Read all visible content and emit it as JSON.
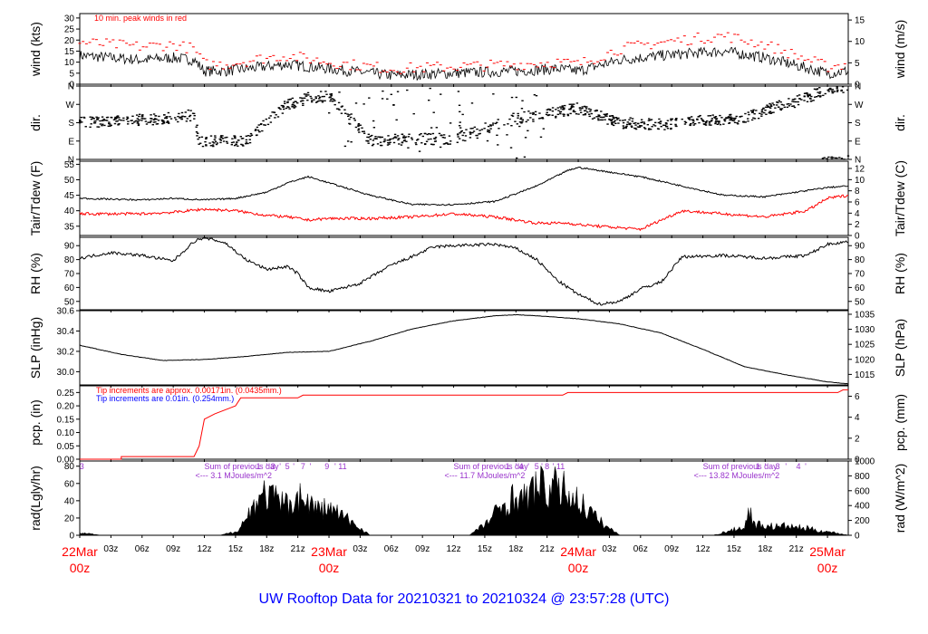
{
  "footer_title": "UW Rooftop Data for 20210321  to  20210324 @ 23:57:28  (UTC)",
  "colors": {
    "trace": "#000000",
    "peak": "#ff0000",
    "dew": "#ff0000",
    "note_red": "#ff0000",
    "note_blue": "#0000ff",
    "solar": "#9933cc",
    "date": "#ff0000",
    "title": "#0000ff"
  },
  "x_axis": {
    "date_labels": [
      {
        "day": "22Mar",
        "hour": "00z"
      },
      {
        "day": "23Mar",
        "hour": "00z"
      },
      {
        "day": "24Mar",
        "hour": "00z"
      },
      {
        "day": "25Mar",
        "hour": "00z"
      }
    ],
    "hour_labels": [
      "03z",
      "06z",
      "09z",
      "12z",
      "15z",
      "18z",
      "21z"
    ]
  },
  "chart_data": [
    {
      "type": "line",
      "name": "wind",
      "ylabel_left": "wind (kts)",
      "ylabel_right": "wind (m/s)",
      "yticks_left": [
        "0",
        "5",
        "10",
        "15",
        "20",
        "25",
        "30"
      ],
      "ylim_left": [
        0,
        32
      ],
      "yticks_right": [
        "0",
        "5",
        "10",
        "15"
      ],
      "ylim_right": [
        0,
        16.5
      ],
      "note": "10 min. peak winds in red",
      "x_hours": [
        0,
        3,
        6,
        9,
        11,
        12,
        14,
        18,
        20,
        24,
        30,
        36,
        42,
        46,
        48,
        52,
        56,
        62,
        66,
        72,
        74
      ],
      "speed_kts": [
        13,
        12,
        11,
        12,
        11,
        6,
        6,
        8,
        9,
        7,
        4,
        5,
        6,
        7,
        6,
        11,
        13,
        15,
        12,
        5,
        6
      ],
      "peak_kts": [
        19,
        18,
        17,
        18,
        16,
        9,
        9,
        12,
        13,
        10,
        7,
        8,
        9,
        10,
        9,
        16,
        19,
        22,
        18,
        8,
        9
      ]
    },
    {
      "type": "scatter",
      "name": "direction",
      "ylabel_left": "dir.",
      "ylabel_right": "dir.",
      "yticks": [
        "N",
        "E",
        "S",
        "W",
        "N"
      ],
      "ylim_deg": [
        0,
        360
      ],
      "x_hours": [
        0,
        4,
        8,
        10,
        11,
        11.5,
        12,
        16,
        20,
        22,
        24,
        28,
        32,
        36,
        42,
        48,
        52,
        56,
        60,
        64,
        66,
        70,
        72
      ],
      "dir_deg": [
        180,
        190,
        200,
        210,
        220,
        90,
        90,
        90,
        270,
        300,
        310,
        90,
        100,
        100,
        200,
        250,
        180,
        170,
        190,
        200,
        240,
        300,
        350
      ]
    },
    {
      "type": "line",
      "name": "temperature",
      "ylabel_left": "Tair/Tdew (F)",
      "ylabel_right": "Tair/Tdew (C)",
      "yticks_left": [
        "35",
        "40",
        "45",
        "50",
        "55"
      ],
      "ylim_left": [
        32,
        56
      ],
      "yticks_right": [
        "0",
        "2",
        "4",
        "6",
        "8",
        "10",
        "12"
      ],
      "ylim_right": [
        0,
        13.3
      ],
      "x_hours": [
        0,
        6,
        9,
        12,
        15,
        18,
        20,
        22,
        24,
        28,
        32,
        36,
        40,
        44,
        47,
        48,
        50,
        54,
        58,
        62,
        66,
        70,
        72,
        74
      ],
      "tair_f": [
        44,
        43.5,
        44,
        43.5,
        44,
        46,
        49,
        51,
        49,
        45,
        42,
        42,
        43,
        48,
        53,
        54,
        53,
        51,
        48,
        45,
        44.5,
        46.5,
        47.5,
        48
      ],
      "tdew_f": [
        39,
        39,
        39.5,
        40.5,
        40,
        38.5,
        38,
        37,
        37.5,
        37.5,
        38,
        39,
        38,
        36,
        36,
        35.5,
        35,
        34,
        40,
        39,
        38,
        40,
        44,
        45
      ]
    },
    {
      "type": "line",
      "name": "relative_humidity",
      "ylabel_left": "RH (%)",
      "ylabel_right": "RH (%)",
      "yticks": [
        "50",
        "60",
        "70",
        "80",
        "90"
      ],
      "ylim": [
        44,
        96
      ],
      "x_hours": [
        0,
        3,
        6,
        9,
        11,
        12,
        14,
        16,
        18,
        20,
        21,
        22,
        24,
        27,
        30,
        32,
        34,
        36,
        40,
        42,
        44,
        46,
        48,
        50,
        52,
        54,
        56,
        58,
        62,
        66,
        70,
        72,
        74
      ],
      "rh_pct": [
        81,
        85,
        83,
        79,
        93,
        96,
        92,
        80,
        73,
        75,
        70,
        60,
        57,
        63,
        76,
        82,
        89,
        90,
        91,
        88,
        80,
        65,
        55,
        48,
        50,
        59,
        64,
        82,
        83,
        81,
        83,
        91,
        93
      ]
    },
    {
      "type": "line",
      "name": "sea_level_pressure",
      "ylabel_left": "SLP (inHg)",
      "ylabel_right": "SLP (hPa)",
      "yticks_left": [
        "30.0",
        "30.2",
        "30.4",
        "30.6"
      ],
      "ylim_left": [
        29.87,
        30.6
      ],
      "yticks_right": [
        "1015",
        "1020",
        "1025",
        "1030",
        "1035"
      ],
      "ylim_right": [
        1011.5,
        1036.2
      ],
      "x_hours": [
        0,
        4,
        8,
        12,
        16,
        20,
        24,
        28,
        32,
        36,
        40,
        42,
        44,
        48,
        52,
        56,
        60,
        64,
        68,
        72,
        74
      ],
      "slp_inhg": [
        30.26,
        30.17,
        30.11,
        30.12,
        30.15,
        30.19,
        30.2,
        30.3,
        30.42,
        30.5,
        30.55,
        30.56,
        30.55,
        30.52,
        30.47,
        30.38,
        30.22,
        30.05,
        29.97,
        29.9,
        29.88
      ]
    },
    {
      "type": "line",
      "name": "precipitation",
      "ylabel_left": "pcp. (in)",
      "ylabel_right": "pcp. (mm)",
      "yticks_left": [
        "0.00",
        "0.05",
        "0.10",
        "0.15",
        "0.20",
        "0.25"
      ],
      "ylim_left": [
        0,
        0.275
      ],
      "yticks_right": [
        "0",
        "2",
        "4",
        "6"
      ],
      "ylim_right": [
        0,
        6.99
      ],
      "note_red": "Tip increments are approx. 0.00171in. (0.0435mm.)",
      "note_blue": "Tip increments are 0.01in. (0.254mm.)",
      "x_hours": [
        0,
        4,
        4,
        11,
        11.5,
        12,
        13,
        15,
        15.5,
        21,
        21.5,
        46.5,
        47,
        73,
        73.5,
        74
      ],
      "pcp_in": [
        0,
        0,
        0.01,
        0.01,
        0.05,
        0.15,
        0.17,
        0.2,
        0.23,
        0.23,
        0.24,
        0.24,
        0.25,
        0.25,
        0.26,
        0.26
      ]
    },
    {
      "type": "area",
      "name": "solar_radiation",
      "ylabel_left": "rad(Lgly/hr)",
      "ylabel_right": "rad (W/m^2)",
      "yticks_left": [
        "0",
        "20",
        "40",
        "60",
        "80"
      ],
      "ylim_left": [
        0,
        86
      ],
      "yticks_right": [
        "0",
        "200",
        "400",
        "600",
        "800",
        "1000"
      ],
      "ylim_right": [
        0,
        1000
      ],
      "daily_sums": [
        {
          "label": "Sum of previous day",
          "value": "<--- 3.1 MJoules/m^2"
        },
        {
          "label": "Sum of previous day",
          "value": "<--- 11.7 MJoules/m^2"
        },
        {
          "label": "Sum of previous day",
          "value": "<--- 13.82 MJoules/m^2"
        }
      ],
      "tip_markers": [
        {
          "x": 0.2,
          "text": "3"
        },
        {
          "x": 17.2,
          "text": "1"
        },
        {
          "x": 18.0,
          "text": "'"
        },
        {
          "x": 18.6,
          "text": "3"
        },
        {
          "x": 19.3,
          "text": "'"
        },
        {
          "x": 20.0,
          "text": "5"
        },
        {
          "x": 20.6,
          "text": "'"
        },
        {
          "x": 21.5,
          "text": "7"
        },
        {
          "x": 22.2,
          "text": "'"
        },
        {
          "x": 23.8,
          "text": "9"
        },
        {
          "x": 24.6,
          "text": "'"
        },
        {
          "x": 25.3,
          "text": "11"
        },
        {
          "x": 41.2,
          "text": "1"
        },
        {
          "x": 42.0,
          "text": "'"
        },
        {
          "x": 42.5,
          "text": "4"
        },
        {
          "x": 43.2,
          "text": "'"
        },
        {
          "x": 44.0,
          "text": "5"
        },
        {
          "x": 44.5,
          "text": "'"
        },
        {
          "x": 45.0,
          "text": "8"
        },
        {
          "x": 45.6,
          "text": "'"
        },
        {
          "x": 46.3,
          "text": "11"
        },
        {
          "x": 65.3,
          "text": "1"
        },
        {
          "x": 66.0,
          "text": "'"
        },
        {
          "x": 67.2,
          "text": "3"
        },
        {
          "x": 68.0,
          "text": "'"
        },
        {
          "x": 69.2,
          "text": "4"
        },
        {
          "x": 69.9,
          "text": "'"
        }
      ],
      "x_hours": [
        0,
        1,
        2,
        13.5,
        15,
        16,
        17,
        18,
        19,
        20,
        21,
        22,
        23,
        24,
        25,
        26,
        27,
        28,
        37.5,
        39,
        40,
        41,
        42,
        43,
        44,
        45,
        46,
        47,
        48,
        49,
        50,
        51,
        52,
        61,
        62,
        63,
        64,
        64.5,
        65,
        66,
        67,
        68,
        69,
        70,
        71,
        72,
        73,
        74
      ],
      "rad_lgly": [
        3,
        2,
        0,
        0,
        5,
        22,
        50,
        58,
        48,
        42,
        55,
        46,
        36,
        38,
        30,
        20,
        10,
        0,
        0,
        15,
        30,
        45,
        55,
        50,
        72,
        62,
        68,
        60,
        48,
        35,
        20,
        10,
        0,
        0,
        4,
        8,
        12,
        35,
        15,
        14,
        12,
        13,
        11,
        10,
        7,
        5,
        3,
        0
      ]
    }
  ]
}
